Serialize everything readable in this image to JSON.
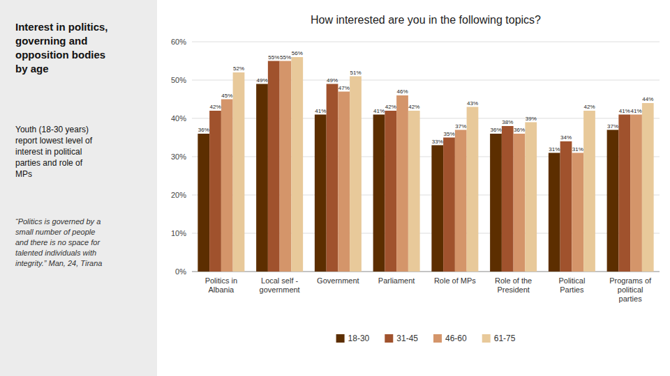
{
  "chart_data": {
    "type": "bar",
    "title": "How interested are you in the following topics?",
    "annotations": [
      "Interest in politics,\ngoverning and\nopposition bodies\nby age",
      "Youth (18-30 years)\nreport lowest level of\ninterest in political\nparties and role of\nMPs",
      "“Politics is governed by a\nsmall number of people\nand there is no space for\ntalented individuals with\nintegrity.”  Man, 24, Tirana"
    ],
    "categories": [
      "Politics in\nAlbania",
      "Local self -\ngovernment",
      "Government",
      "Parliament",
      "Role of MPs",
      "Role of the\nPresident",
      "Political\nParties",
      "Programs of\npolitical\nparties"
    ],
    "series": [
      {
        "name": "18-30",
        "color": "#5C2E00",
        "values": [
          36,
          49,
          41,
          41,
          33,
          36,
          31,
          37
        ],
        "value_labels": [
          "36%",
          "49%",
          "41%",
          "41%",
          "33%",
          "36%",
          "31%",
          "37%"
        ]
      },
      {
        "name": "31-45",
        "color": "#A0522D",
        "values": [
          42,
          55,
          49,
          42,
          35,
          38,
          34,
          41
        ],
        "value_labels": [
          "42%",
          "55%",
          "49%",
          "42%",
          "35%",
          "38%",
          "34%",
          "41%"
        ]
      },
      {
        "name": "46-60",
        "color": "#D4956A",
        "values": [
          45,
          55,
          47,
          46,
          37,
          36,
          31,
          41
        ],
        "value_labels": [
          "45%",
          "55%",
          "47%",
          "46%",
          "37%",
          "36%",
          "31%",
          "41%"
        ]
      },
      {
        "name": "61-75",
        "color": "#E8C99A",
        "values": [
          52,
          56,
          51,
          42,
          43,
          39,
          42,
          44
        ],
        "value_labels": [
          "52%",
          "56%",
          "51%",
          "42%",
          "43%",
          "39%",
          "42%",
          "44%"
        ]
      }
    ],
    "ylim": [
      0,
      60
    ],
    "yticks": [
      {
        "value": 0,
        "label": "0%"
      },
      {
        "value": 10,
        "label": "10%"
      },
      {
        "value": 20,
        "label": "20%"
      },
      {
        "value": 30,
        "label": "30%"
      },
      {
        "value": 40,
        "label": "40%"
      },
      {
        "value": 50,
        "label": "50%"
      },
      {
        "value": 60,
        "label": "60%"
      }
    ],
    "grid": true,
    "legend": "bottom",
    "data_labels": true
  }
}
